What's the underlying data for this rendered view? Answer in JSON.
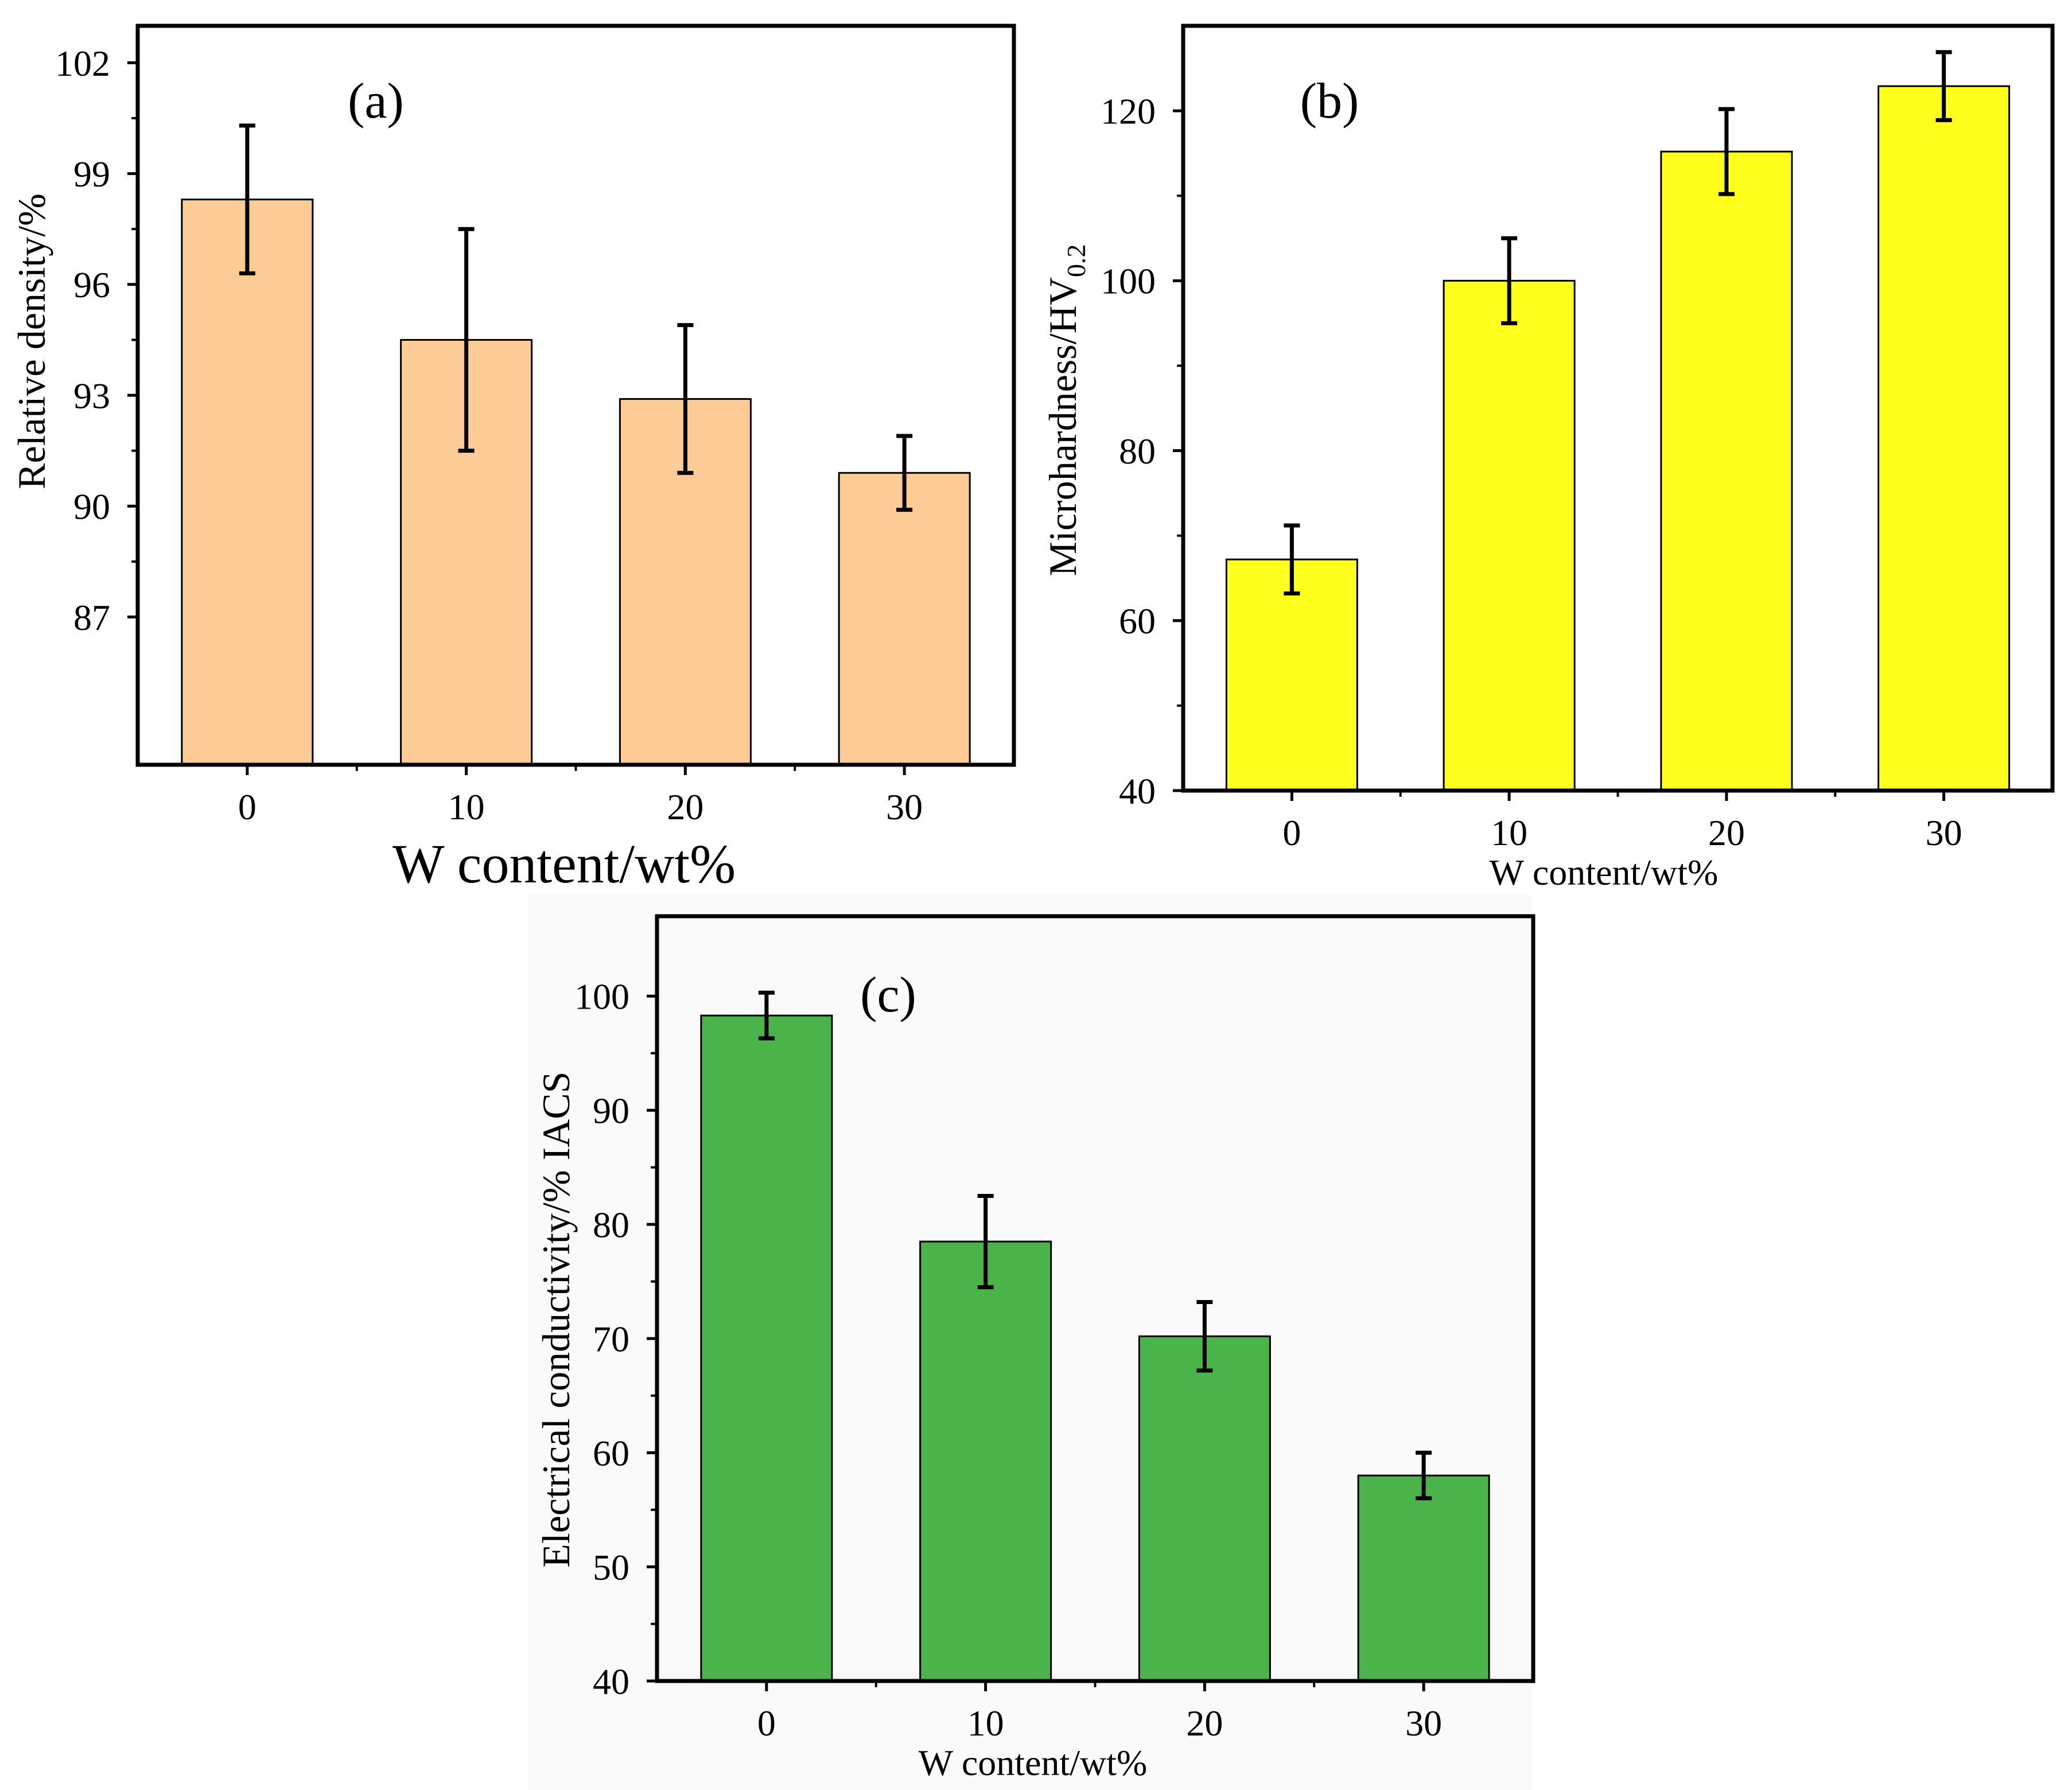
{
  "chart_data": [
    {
      "panel": "(a)",
      "type": "bar",
      "categories": [
        "0",
        "10",
        "20",
        "30"
      ],
      "values": [
        98.3,
        94.5,
        92.9,
        90.9
      ],
      "errors": [
        2.0,
        3.0,
        2.0,
        1.0
      ],
      "xlabel": "W content/wt%",
      "ylabel": "Relative density/%",
      "ylim": [
        83.0,
        103.0
      ],
      "yticks": [
        87,
        90,
        93,
        96,
        99,
        102
      ],
      "bar_color": "#FCCB96"
    },
    {
      "panel": "(b)",
      "type": "bar",
      "categories": [
        "0",
        "10",
        "20",
        "30"
      ],
      "values": [
        67.2,
        100.0,
        115.2,
        122.9
      ],
      "errors": [
        4.0,
        5.0,
        5.0,
        4.0
      ],
      "xlabel": "W content/wt%",
      "ylabel": "Microhardness/HV",
      "ylabel_subscript": "0.2",
      "ylim": [
        40,
        130
      ],
      "yticks": [
        40,
        60,
        80,
        100,
        120
      ],
      "bar_color": "#FFFF1E"
    },
    {
      "panel": "(c)",
      "type": "bar",
      "categories": [
        "0",
        "10",
        "20",
        "30"
      ],
      "values": [
        98.3,
        78.5,
        70.2,
        58.0
      ],
      "errors": [
        2.0,
        4.0,
        3.0,
        2.0
      ],
      "xlabel": "W content/wt%",
      "ylabel": "Electrical conductivity/% IACS",
      "ylim": [
        40,
        107
      ],
      "yticks": [
        40,
        50,
        60,
        70,
        80,
        90,
        100
      ],
      "bar_color": "#4AB44A"
    }
  ]
}
